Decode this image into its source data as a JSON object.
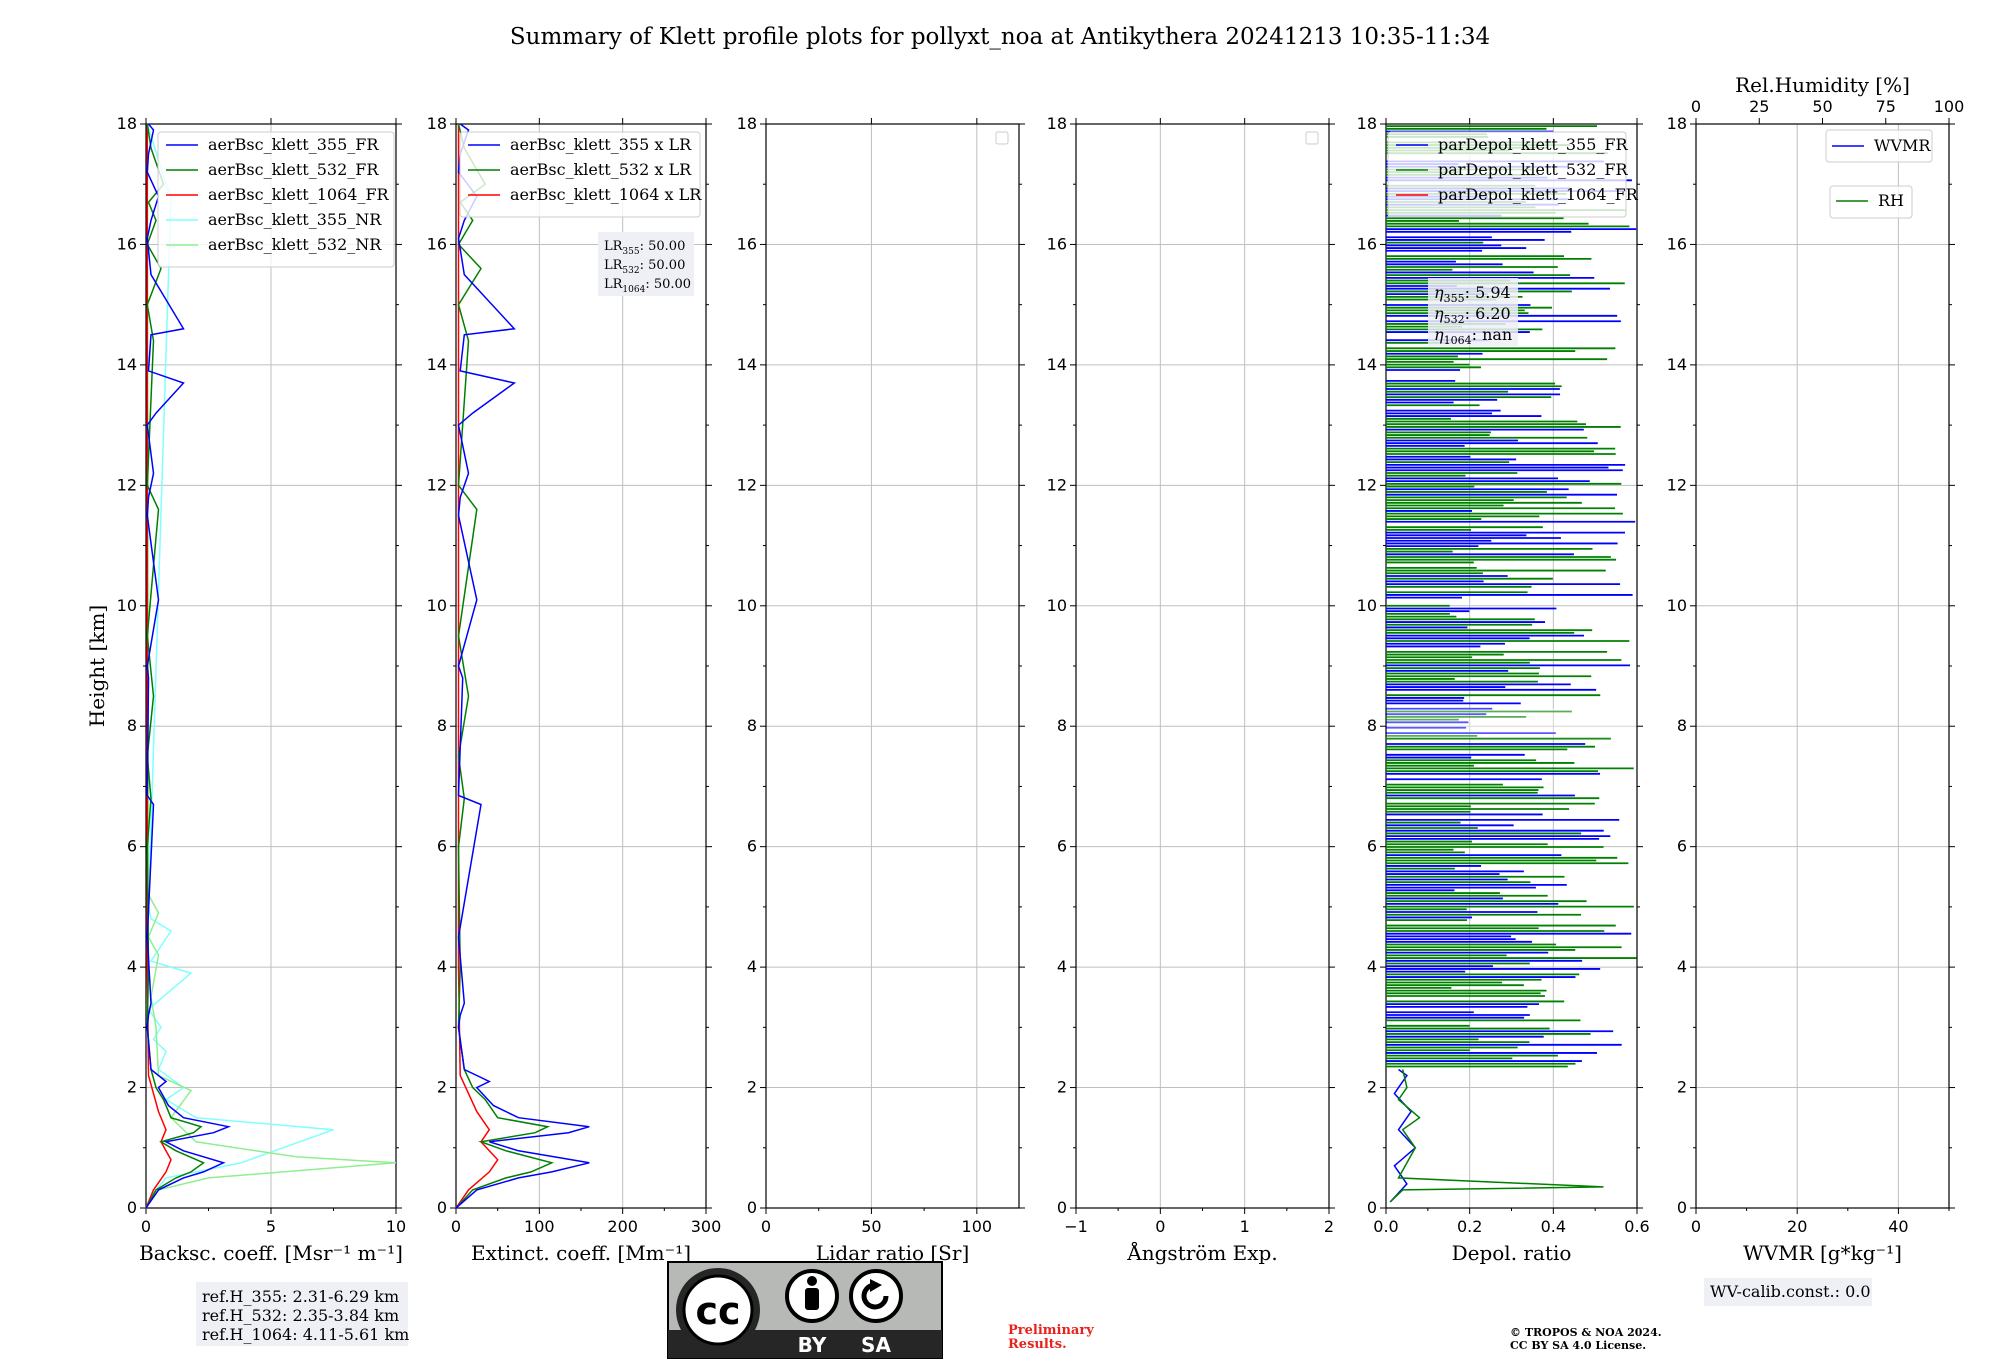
{
  "title": "Summary of Klett profile plots for pollyxt_noa at Antikythera 20241213 10:35-11:34",
  "colors": {
    "blue": "#0000ff",
    "green": "#008000",
    "red": "#ff0000",
    "cyan": "#7fffff",
    "lightgreen": "#90ee90"
  },
  "ylabel": "Height [km]",
  "yticks": [
    "0",
    "2",
    "4",
    "6",
    "8",
    "10",
    "12",
    "14",
    "16",
    "18"
  ],
  "panels": {
    "bsc": {
      "xlabel": "Backsc. coeff. [Msr⁻¹ m⁻¹]",
      "xticks": [
        "0",
        "5",
        "10"
      ],
      "legend": [
        "aerBsc_klett_355_FR",
        "aerBsc_klett_532_FR",
        "aerBsc_klett_1064_FR",
        "aerBsc_klett_355_NR",
        "aerBsc_klett_532_NR"
      ],
      "refh": [
        "ref.H_355: 2.31-6.29 km",
        "ref.H_532: 2.35-3.84 km",
        "ref.H_1064: 4.11-5.61 km"
      ]
    },
    "ext": {
      "xlabel": "Extinct. coeff. [Mm⁻¹]",
      "xticks": [
        "0",
        "100",
        "200",
        "300"
      ],
      "legend": [
        "aerBsc_klett_355 x LR",
        "aerBsc_klett_532 x LR",
        "aerBsc_klett_1064 x LR"
      ],
      "lr": [
        {
          "name": "LR",
          "sub": "355",
          "value": ": 50.00"
        },
        {
          "name": "LR",
          "sub": "532",
          "value": ": 50.00"
        },
        {
          "name": "LR",
          "sub": "1064",
          "value": ": 50.00"
        }
      ]
    },
    "lr": {
      "xlabel": "Lidar ratio [Sr]",
      "xticks": [
        "0",
        "50",
        "100"
      ]
    },
    "ang": {
      "xlabel": "Ångström Exp.",
      "xticks": [
        "−1",
        "0",
        "1",
        "2"
      ]
    },
    "dep": {
      "xlabel": "Depol. ratio",
      "xticks": [
        "0.0",
        "0.2",
        "0.4",
        "0.6"
      ],
      "legend": [
        "parDepol_klett_355_FR",
        "parDepol_klett_532_FR",
        "parDepol_klett_1064_FR"
      ],
      "eta": [
        {
          "sub": "355",
          "value": ": 5.94"
        },
        {
          "sub": "532",
          "value": ": 6.20"
        },
        {
          "sub": "1064",
          "value": ": nan"
        }
      ]
    },
    "wv": {
      "xlabel": "WVMR [g*kg⁻¹]",
      "xticks": [
        "0",
        "20",
        "40"
      ],
      "toplabel": "Rel.Humidity [%]",
      "topticks": [
        "0",
        "25",
        "50",
        "75",
        "100"
      ],
      "legend1": "WVMR",
      "legend2": "RH",
      "calib": "WV-calib.const.: 0.0"
    }
  },
  "license": {
    "cc": "cc",
    "by": "BY",
    "sa": "SA",
    "preliminary": [
      "Preliminary",
      "Results."
    ],
    "copyright": [
      "© TROPOS & NOA 2024.",
      "CC BY SA 4.0 License."
    ]
  },
  "chart_data": [
    {
      "type": "line",
      "title": "",
      "xlabel": "Backsc. coeff. [Msr⁻¹ m⁻¹]",
      "ylabel": "Height [km]",
      "xlim": [
        0,
        10
      ],
      "ylim": [
        0,
        18
      ],
      "grid": true,
      "legend_position": "top-right",
      "series": [
        {
          "name": "aerBsc_klett_355_FR",
          "x": [
            0,
            0.5,
            1.5,
            2.3,
            3.1,
            1.5,
            0.8,
            2.7,
            3.3,
            1.5,
            0.9,
            0.5,
            0.8,
            0.2,
            0.05,
            0.1,
            0.2,
            0.05,
            0.3,
            0.05,
            0.1,
            0.05,
            0.5,
            0.05,
            0.1,
            0.3,
            0.05,
            0.4,
            1.5,
            0.1,
            0.2,
            1.5,
            0.2,
            0.05,
            0.2,
            0.5,
            0.05,
            0.1,
            0.3,
            0.1
          ],
          "y": [
            0,
            0.3,
            0.5,
            0.6,
            0.75,
            0.95,
            1.1,
            1.25,
            1.35,
            1.5,
            1.7,
            2.0,
            2.1,
            2.3,
            3.0,
            3.2,
            3.4,
            4.5,
            6.7,
            6.85,
            8.8,
            9.0,
            10.1,
            11.5,
            11.8,
            12.2,
            13.0,
            13.2,
            13.7,
            13.9,
            14.5,
            14.6,
            15.5,
            16.1,
            16.4,
            16.8,
            17.2,
            17.5,
            17.9,
            18
          ]
        },
        {
          "name": "aerBsc_klett_532_FR",
          "x": [
            0,
            0.4,
            1.2,
            1.8,
            2.3,
            1.2,
            0.6,
            1.9,
            2.2,
            1.0,
            0.7,
            0.4,
            0.2,
            0.05,
            0.1,
            0.05,
            0.2,
            0.05,
            0.3,
            0.05,
            0.5,
            0.05,
            0.3,
            0.05,
            0.6,
            0.05,
            0.4,
            0.1,
            0.7,
            0.2,
            0.05
          ],
          "y": [
            0,
            0.3,
            0.5,
            0.6,
            0.75,
            0.95,
            1.1,
            1.25,
            1.35,
            1.5,
            1.8,
            2.0,
            2.3,
            3.0,
            4.0,
            6.0,
            6.8,
            7.5,
            8.5,
            9.5,
            11.6,
            12.0,
            14.4,
            15.0,
            15.6,
            16.0,
            16.4,
            16.7,
            17.0,
            17.6,
            18
          ]
        },
        {
          "name": "aerBsc_klett_1064_FR",
          "x": [
            0,
            0.3,
            0.8,
            1.0,
            0.6,
            0.8,
            0.5,
            0.3,
            0.1,
            0.05,
            0.05
          ],
          "y": [
            0,
            0.3,
            0.6,
            0.8,
            1.1,
            1.3,
            1.6,
            1.9,
            2.2,
            4.0,
            18
          ]
        },
        {
          "name": "aerBsc_klett_355_NR",
          "x": [
            0,
            0.2,
            0.8,
            3.8,
            7.5,
            2.0,
            0.8,
            1.5,
            0.5,
            0.8,
            0.3,
            0.6,
            0.1,
            1.8,
            0.2,
            1.0,
            0.2,
            0.1,
            1.0,
            0.8,
            0.05
          ],
          "y": [
            0,
            0.2,
            0.5,
            0.75,
            1.3,
            1.5,
            1.8,
            2.0,
            2.3,
            2.6,
            2.8,
            3.0,
            3.3,
            3.9,
            4.1,
            4.6,
            4.8,
            5.0,
            16.8,
            17.0,
            18
          ]
        },
        {
          "name": "aerBsc_klett_532_NR",
          "x": [
            0,
            0.5,
            2.5,
            10,
            6,
            2.0,
            1.0,
            1.8,
            0.5,
            0.4,
            0.2,
            0.5,
            0.1,
            0.5,
            0.1,
            0.05
          ],
          "y": [
            0,
            0.3,
            0.5,
            0.75,
            0.85,
            1.1,
            1.5,
            1.95,
            2.2,
            3.0,
            3.5,
            4.2,
            4.5,
            4.9,
            5.2,
            18
          ]
        }
      ]
    },
    {
      "type": "line",
      "title": "",
      "xlabel": "Extinct. coeff. [Mm⁻¹]",
      "ylabel": "",
      "xlim": [
        0,
        300
      ],
      "ylim": [
        0,
        18
      ],
      "grid": true,
      "legend_position": "top-right",
      "series": [
        {
          "name": "aerBsc_klett_355 x LR",
          "x": [
            0,
            25,
            75,
            115,
            160,
            75,
            40,
            135,
            160,
            75,
            45,
            25,
            40,
            10,
            3,
            5,
            10,
            3,
            30,
            3,
            8,
            3,
            25,
            3,
            5,
            15,
            3,
            20,
            70,
            5,
            10,
            70,
            10,
            3,
            10,
            25,
            3,
            5,
            15,
            5
          ],
          "y": [
            0,
            0.3,
            0.5,
            0.6,
            0.75,
            0.95,
            1.1,
            1.25,
            1.35,
            1.5,
            1.7,
            2.0,
            2.1,
            2.3,
            3.0,
            3.2,
            3.4,
            4.5,
            6.7,
            6.85,
            8.8,
            9.0,
            10.1,
            11.5,
            11.8,
            12.2,
            13.0,
            13.2,
            13.7,
            13.9,
            14.5,
            14.6,
            15.5,
            16.1,
            16.4,
            16.8,
            17.2,
            17.5,
            17.9,
            18
          ]
        },
        {
          "name": "aerBsc_klett_532 x LR",
          "x": [
            0,
            20,
            60,
            90,
            115,
            60,
            30,
            95,
            110,
            50,
            35,
            20,
            10,
            3,
            5,
            3,
            10,
            3,
            15,
            3,
            25,
            3,
            15,
            3,
            30,
            3,
            20,
            5,
            35,
            10,
            3
          ],
          "y": [
            0,
            0.3,
            0.5,
            0.6,
            0.75,
            0.95,
            1.1,
            1.25,
            1.35,
            1.5,
            1.8,
            2.0,
            2.3,
            3.0,
            4.0,
            6.0,
            6.8,
            7.5,
            8.5,
            9.5,
            11.6,
            12.0,
            14.4,
            15.0,
            15.6,
            16.0,
            16.4,
            16.7,
            17.0,
            17.6,
            18
          ]
        },
        {
          "name": "aerBsc_klett_1064 x LR",
          "x": [
            0,
            15,
            40,
            50,
            30,
            40,
            25,
            15,
            5,
            3,
            3
          ],
          "y": [
            0,
            0.3,
            0.6,
            0.8,
            1.1,
            1.3,
            1.6,
            1.9,
            2.2,
            4.0,
            18
          ]
        }
      ]
    },
    {
      "type": "line",
      "title": "",
      "xlabel": "Depol. ratio",
      "ylabel": "",
      "xlim": [
        0,
        0.6
      ],
      "ylim": [
        0,
        18
      ],
      "grid": true,
      "legend_position": "top-right",
      "series": [
        {
          "name": "parDepol_klett_355_FR",
          "x": [
            0.01,
            0.05,
            0.02,
            0.07,
            0.03,
            0.06,
            0.02,
            0.03,
            0.05,
            0.03
          ],
          "y": [
            0.1,
            0.4,
            0.7,
            1.0,
            1.3,
            1.6,
            1.9,
            2.0,
            2.2,
            2.3
          ]
        },
        {
          "name": "parDepol_klett_532_FR",
          "x": [
            0.01,
            0.04,
            0.52,
            0.03,
            0.07,
            0.04,
            0.08,
            0.03,
            0.05,
            0.04
          ],
          "y": [
            0.1,
            0.3,
            0.35,
            0.5,
            1.0,
            1.3,
            1.5,
            1.8,
            2.0,
            2.3
          ]
        }
      ]
    }
  ]
}
